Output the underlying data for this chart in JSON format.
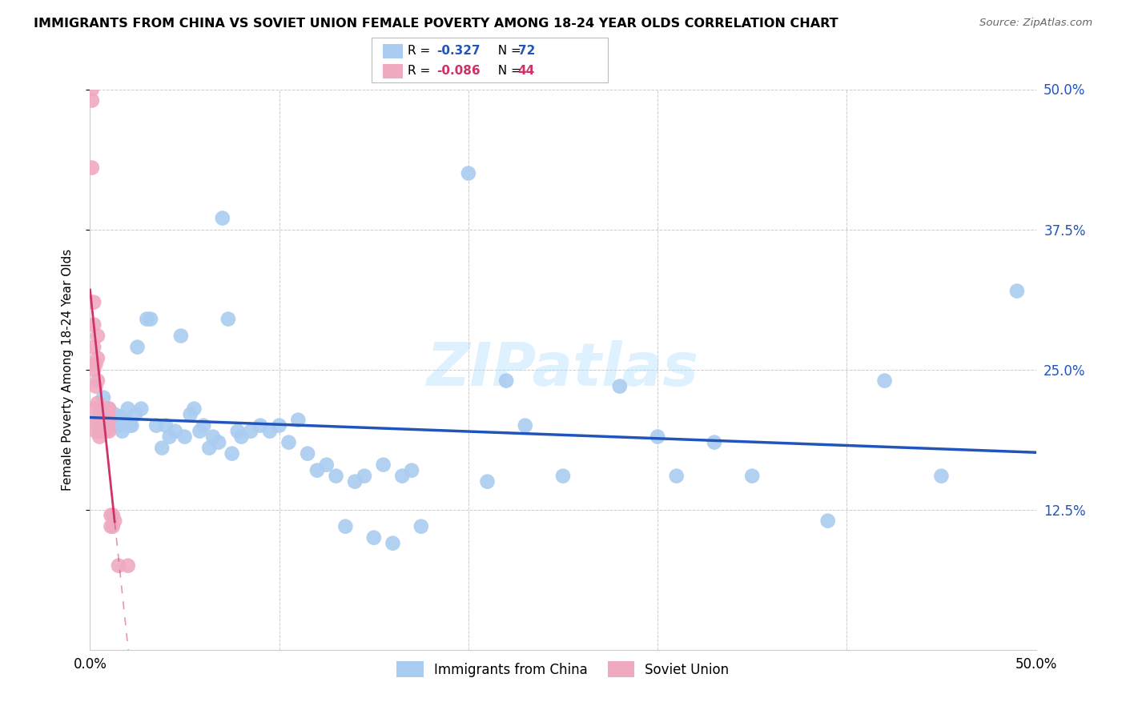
{
  "title": "IMMIGRANTS FROM CHINA VS SOVIET UNION FEMALE POVERTY AMONG 18-24 YEAR OLDS CORRELATION CHART",
  "source": "Source: ZipAtlas.com",
  "ylabel": "Female Poverty Among 18-24 Year Olds",
  "xlim": [
    0.0,
    0.5
  ],
  "ylim": [
    0.0,
    0.5
  ],
  "ytick_vals": [
    0.125,
    0.25,
    0.375,
    0.5
  ],
  "ytick_labels_right": [
    "12.5%",
    "25.0%",
    "37.5%",
    "50.0%"
  ],
  "xtick_vals": [
    0.0,
    0.1,
    0.2,
    0.3,
    0.4,
    0.5
  ],
  "xtick_labels": [
    "0.0%",
    "",
    "",
    "",
    "",
    "50.0%"
  ],
  "china_R": -0.327,
  "china_N": 72,
  "soviet_R": -0.086,
  "soviet_N": 44,
  "china_color": "#aaccf0",
  "soviet_color": "#f0aac0",
  "china_line_color": "#2255bb",
  "soviet_line_color": "#cc3366",
  "watermark": "ZIPatlas",
  "china_x": [
    0.005,
    0.007,
    0.009,
    0.01,
    0.011,
    0.012,
    0.013,
    0.014,
    0.015,
    0.016,
    0.017,
    0.018,
    0.02,
    0.021,
    0.022,
    0.024,
    0.025,
    0.027,
    0.03,
    0.032,
    0.035,
    0.038,
    0.04,
    0.042,
    0.045,
    0.048,
    0.05,
    0.053,
    0.055,
    0.058,
    0.06,
    0.063,
    0.065,
    0.068,
    0.07,
    0.073,
    0.075,
    0.078,
    0.08,
    0.085,
    0.09,
    0.095,
    0.1,
    0.105,
    0.11,
    0.115,
    0.12,
    0.125,
    0.13,
    0.135,
    0.14,
    0.145,
    0.15,
    0.155,
    0.16,
    0.165,
    0.17,
    0.175,
    0.2,
    0.21,
    0.22,
    0.23,
    0.25,
    0.28,
    0.3,
    0.31,
    0.33,
    0.35,
    0.39,
    0.42,
    0.45,
    0.49
  ],
  "china_y": [
    0.215,
    0.225,
    0.205,
    0.215,
    0.21,
    0.205,
    0.21,
    0.2,
    0.2,
    0.208,
    0.195,
    0.205,
    0.215,
    0.2,
    0.2,
    0.21,
    0.27,
    0.215,
    0.295,
    0.295,
    0.2,
    0.18,
    0.2,
    0.19,
    0.195,
    0.28,
    0.19,
    0.21,
    0.215,
    0.195,
    0.2,
    0.18,
    0.19,
    0.185,
    0.385,
    0.295,
    0.175,
    0.195,
    0.19,
    0.195,
    0.2,
    0.195,
    0.2,
    0.185,
    0.205,
    0.175,
    0.16,
    0.165,
    0.155,
    0.11,
    0.15,
    0.155,
    0.1,
    0.165,
    0.095,
    0.155,
    0.16,
    0.11,
    0.425,
    0.15,
    0.24,
    0.2,
    0.155,
    0.235,
    0.19,
    0.155,
    0.185,
    0.155,
    0.115,
    0.24,
    0.155,
    0.32
  ],
  "soviet_x": [
    0.001,
    0.001,
    0.001,
    0.002,
    0.002,
    0.002,
    0.002,
    0.003,
    0.003,
    0.003,
    0.003,
    0.003,
    0.004,
    0.004,
    0.004,
    0.004,
    0.004,
    0.005,
    0.005,
    0.005,
    0.005,
    0.005,
    0.006,
    0.006,
    0.006,
    0.006,
    0.007,
    0.007,
    0.007,
    0.008,
    0.008,
    0.008,
    0.009,
    0.009,
    0.01,
    0.01,
    0.01,
    0.011,
    0.011,
    0.012,
    0.012,
    0.013,
    0.015,
    0.02
  ],
  "soviet_y": [
    0.5,
    0.49,
    0.43,
    0.31,
    0.29,
    0.27,
    0.25,
    0.255,
    0.235,
    0.215,
    0.205,
    0.195,
    0.28,
    0.26,
    0.24,
    0.22,
    0.2,
    0.21,
    0.205,
    0.2,
    0.195,
    0.19,
    0.215,
    0.205,
    0.2,
    0.195,
    0.21,
    0.205,
    0.195,
    0.215,
    0.205,
    0.195,
    0.215,
    0.2,
    0.215,
    0.205,
    0.195,
    0.12,
    0.11,
    0.12,
    0.11,
    0.115,
    0.075,
    0.075
  ]
}
